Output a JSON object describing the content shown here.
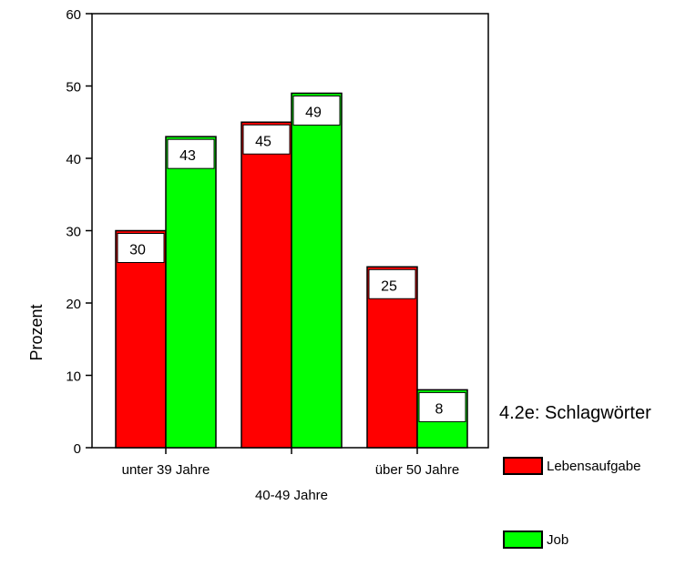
{
  "chart_data": {
    "type": "bar",
    "categories": [
      "unter 39 Jahre",
      "40-49 Jahre",
      "über 50 Jahre"
    ],
    "series": [
      {
        "name": "Lebensaufgabe",
        "values": [
          30,
          45,
          25
        ],
        "color": "#ff0000"
      },
      {
        "name": "Job",
        "values": [
          43,
          49,
          8
        ],
        "color": "#00ff00"
      }
    ],
    "ylabel": "Prozent",
    "xlabel": "",
    "ylim": [
      0,
      60
    ],
    "yticks": [
      0,
      10,
      20,
      30,
      40,
      50,
      60
    ],
    "data_labels": true,
    "legend": {
      "title": "4.2e: Schlagwörter",
      "position": "right"
    },
    "grid": false
  }
}
